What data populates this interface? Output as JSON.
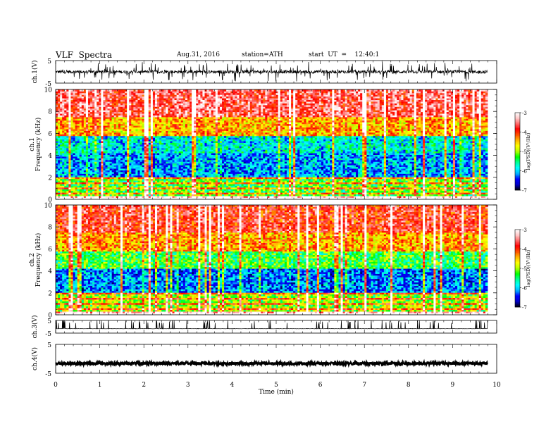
{
  "header": {
    "title": "VLF  Spectra",
    "date": "Aug.31, 2016",
    "station": "station=ATH",
    "start": "start  UT  =    12:40:1"
  },
  "chart_data": [
    {
      "type": "line",
      "panel": "ch1-waveform",
      "ylabel": "ch.1(V)",
      "ylim": [
        -5,
        5
      ],
      "yticks": [
        "5",
        "-5"
      ],
      "xlim": [
        0,
        10
      ]
    },
    {
      "type": "heatmap",
      "panel": "ch1-spectrogram",
      "ylabel_line1": "ch.1",
      "ylabel_line2": "Frequency  (kHz)",
      "ylim": [
        0,
        10
      ],
      "yticks": [
        "0",
        "2",
        "4",
        "6",
        "8",
        "10"
      ],
      "xlim": [
        0,
        9.8
      ],
      "colorbar": {
        "label": "log(PSD)(V²/Hz)",
        "ticks": [
          "-3",
          "-4",
          "-5",
          "-6",
          "-7"
        ],
        "range": [
          -7,
          -3
        ]
      },
      "band_levels": [
        {
          "f": [
            0,
            0.3
          ],
          "level": -3.3
        },
        {
          "f": [
            0.3,
            2.0
          ],
          "level": -5.4
        },
        {
          "f": [
            2.0,
            4.2
          ],
          "level": -6.3
        },
        {
          "f": [
            4.2,
            5.8
          ],
          "level": -6.0
        },
        {
          "f": [
            5.8,
            7.5
          ],
          "level": -4.6
        },
        {
          "f": [
            7.5,
            10
          ],
          "level": -3.8
        }
      ]
    },
    {
      "type": "heatmap",
      "panel": "ch2-spectrogram",
      "ylabel_line1": "ch.2",
      "ylabel_line2": "Frequency  (kHz)",
      "ylim": [
        0,
        10
      ],
      "yticks": [
        "0",
        "2",
        "4",
        "6",
        "8",
        "10"
      ],
      "xlim": [
        0,
        9.8
      ],
      "colorbar": {
        "label": "log(PSD)(V²/Hz)",
        "ticks": [
          "-3",
          "-4",
          "-5",
          "-6",
          "-7"
        ],
        "range": [
          -7,
          -3
        ]
      },
      "band_levels": [
        {
          "f": [
            0,
            0.3
          ],
          "level": -3.4
        },
        {
          "f": [
            0.3,
            2.0
          ],
          "level": -5.2
        },
        {
          "f": [
            2.0,
            4.2
          ],
          "level": -6.4
        },
        {
          "f": [
            4.2,
            5.8
          ],
          "level": -5.5
        },
        {
          "f": [
            5.8,
            7.5
          ],
          "level": -4.6
        },
        {
          "f": [
            7.5,
            10
          ],
          "level": -4.0
        }
      ]
    },
    {
      "type": "line",
      "panel": "ch3-waveform",
      "ylabel": "ch.3(V)",
      "ylim": [
        -5,
        5
      ],
      "yticks": [
        "5",
        "-5"
      ],
      "xlim": [
        0,
        10
      ]
    },
    {
      "type": "line",
      "panel": "ch4-waveform",
      "ylabel": "ch.4(V)",
      "ylim": [
        -5,
        5
      ],
      "yticks": [
        "5",
        "-5"
      ],
      "xlim": [
        0,
        10
      ]
    }
  ],
  "xaxis": {
    "label": "Time  (min)",
    "ticks": [
      "0",
      "1",
      "2",
      "3",
      "4",
      "5",
      "6",
      "7",
      "8",
      "9",
      "10"
    ],
    "range": [
      0,
      10
    ]
  },
  "colors": {
    "colormap": [
      "#000000",
      "#0000c8",
      "#0000ff",
      "#00b4ff",
      "#00ffff",
      "#00ff96",
      "#00ff00",
      "#b4ff00",
      "#ffff00",
      "#ffb400",
      "#ff5000",
      "#ff0000",
      "#ff6a6a",
      "#ffc8c8",
      "#ffffff"
    ]
  }
}
